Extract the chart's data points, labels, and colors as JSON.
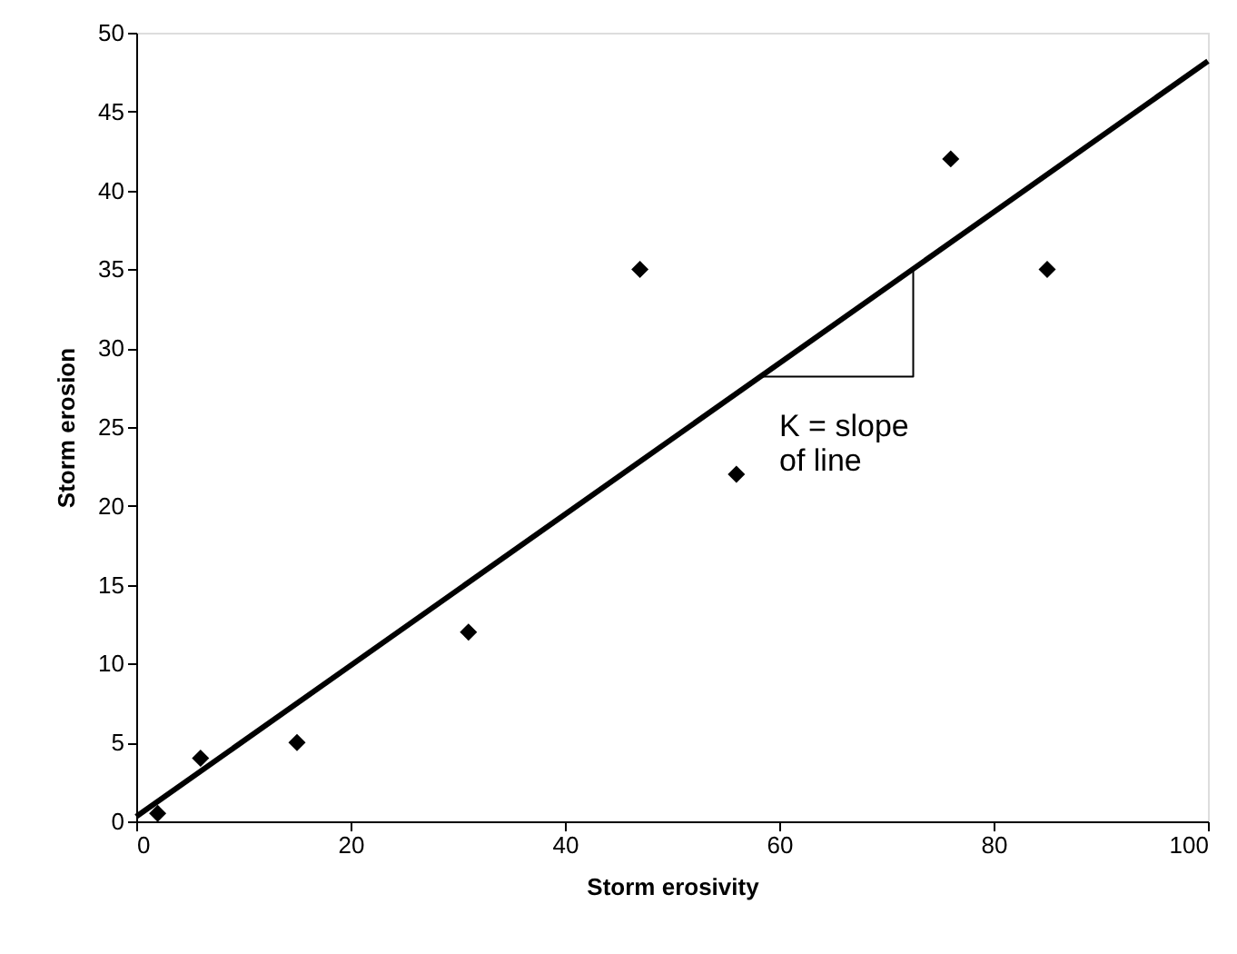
{
  "chart_data": {
    "type": "scatter",
    "xlabel": "Storm erosivity",
    "ylabel": "Storm erosion",
    "xlim": [
      0,
      100
    ],
    "ylim": [
      0,
      50
    ],
    "xticks": [
      0,
      20,
      40,
      60,
      80,
      100
    ],
    "yticks": [
      0,
      5,
      10,
      15,
      20,
      25,
      30,
      35,
      40,
      45,
      50
    ],
    "grid": false,
    "series": [
      {
        "color": "#000000",
        "marker": "diamond",
        "x": [
          2,
          6,
          15,
          31,
          47,
          56,
          76,
          85
        ],
        "values": [
          0.5,
          4,
          5,
          12,
          35,
          22,
          42,
          35
        ]
      },
      {
        "type": "line",
        "color": "#000000",
        "line_style": "solid",
        "marker": "none",
        "x": [
          0,
          100
        ],
        "values": [
          0.3,
          48.2
        ]
      },
      {
        "type": "line",
        "color": "#000000",
        "line_style": "solid",
        "marker": "none",
        "x": [
          58,
          72.5,
          72.5
        ],
        "values": [
          28.2,
          28.2,
          35
        ]
      }
    ],
    "annotations": [
      "K = slope\nof line"
    ]
  }
}
